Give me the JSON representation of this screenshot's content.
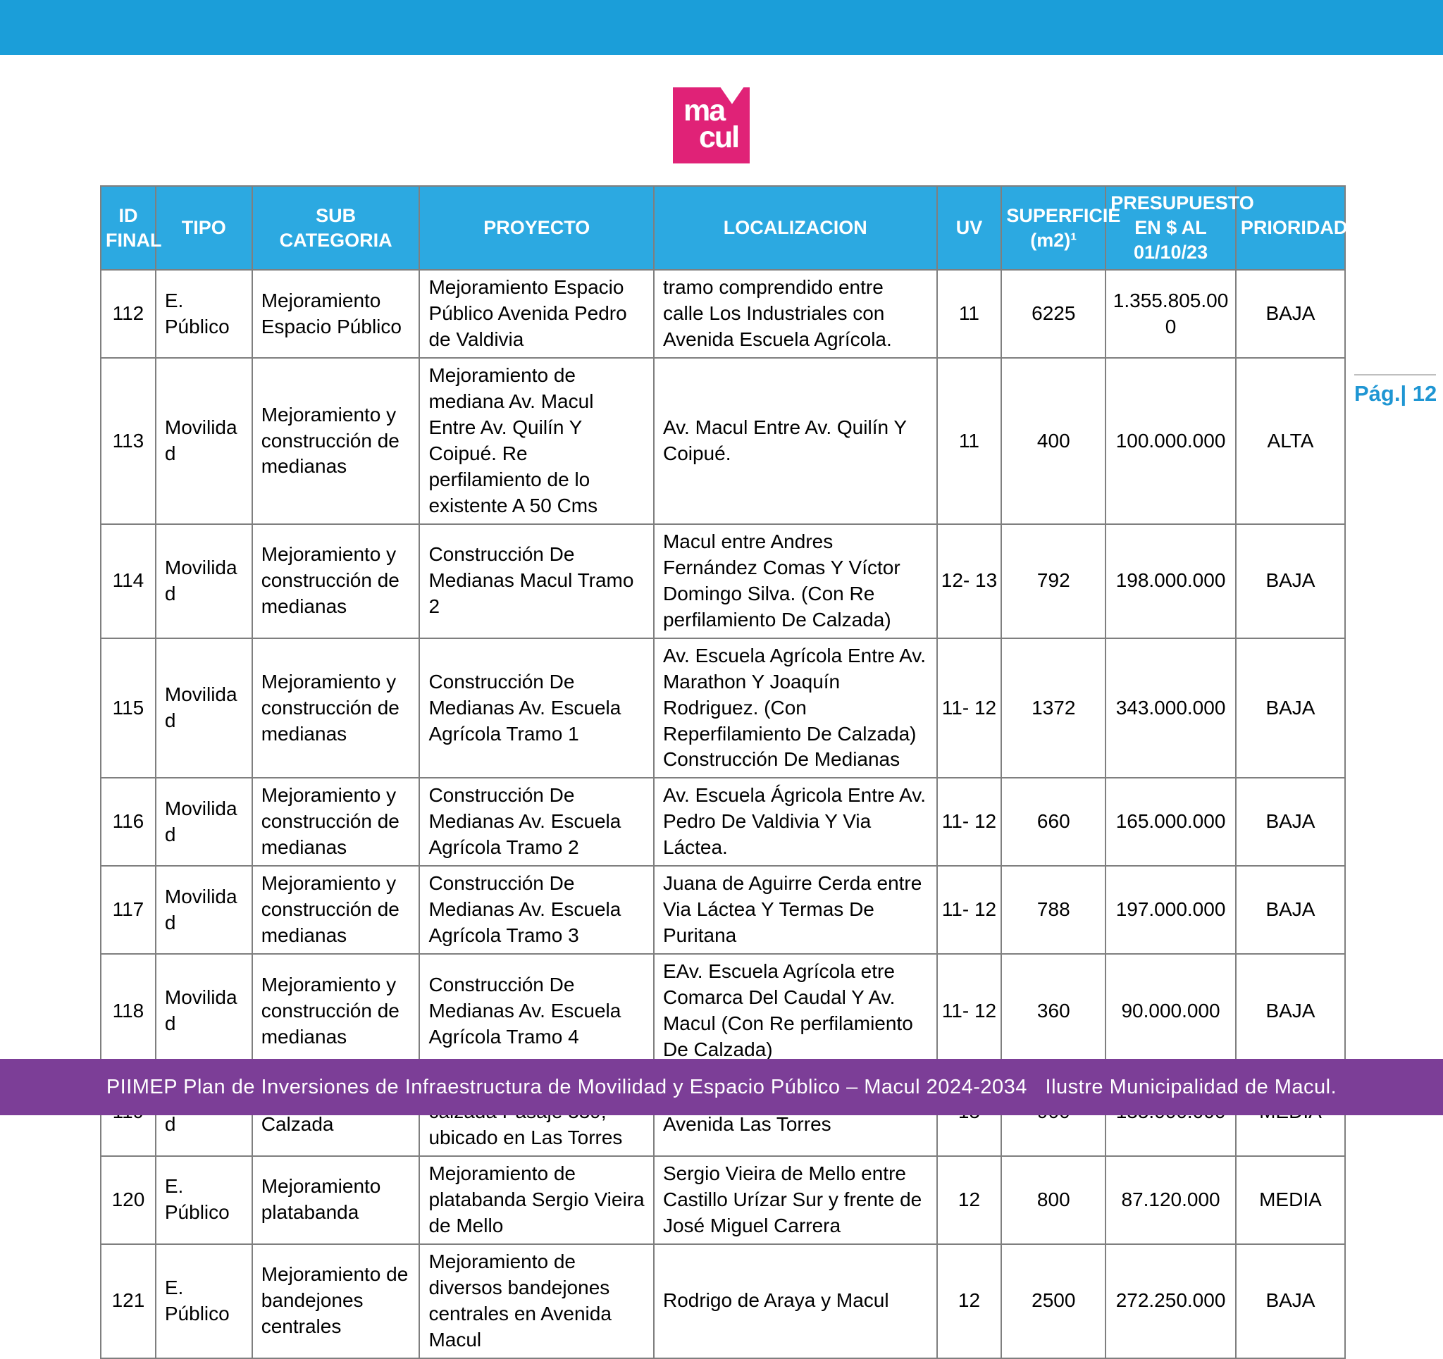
{
  "page_number": {
    "label": "Pág.| 12"
  },
  "logo": {
    "line1": "ma",
    "line2": "cul"
  },
  "colors": {
    "top_bar_cyan": "#1B9ED9",
    "table_header_blue": "#2CA9E1",
    "logo_pink": "#E02277",
    "footer_purple": "#7C3E97",
    "page_number_blue": "#1F96D3",
    "grid_gray": "#7F7F7F"
  },
  "table": {
    "columns": [
      "ID FINAL",
      "TIPO",
      "SUB CATEGORIA",
      "PROYECTO",
      "LOCALIZACION",
      "UV",
      "SUPERFICIE (m2)¹",
      "PRESUPUESTO EN $ AL 01/10/23",
      "PRIORIDAD"
    ],
    "rows": [
      {
        "id": "112",
        "tipo": "E. Público",
        "sub_categoria": "Mejoramiento Espacio Público",
        "proyecto": "Mejoramiento Espacio Público Avenida Pedro de Valdivia",
        "localizacion": "tramo comprendido entre calle Los Industriales con Avenida Escuela Agrícola.",
        "uv": "11",
        "superficie": "6225",
        "presupuesto": "1.355.805.000",
        "prioridad": "BAJA"
      },
      {
        "id": "113",
        "tipo": "Movilidad",
        "sub_categoria": "Mejoramiento y construcción de medianas",
        "proyecto": "Mejoramiento de mediana Av. Macul Entre Av. Quilín Y Coipué. Re perfilamiento de lo existente A 50 Cms",
        "localizacion": "Av. Macul Entre Av. Quilín Y Coipué.",
        "uv": "11",
        "superficie": "400",
        "presupuesto": "100.000.000",
        "prioridad": "ALTA"
      },
      {
        "id": "114",
        "tipo": "Movilidad",
        "sub_categoria": "Mejoramiento y construcción de medianas",
        "proyecto": "Construcción De Medianas Macul Tramo 2",
        "localizacion": "Macul entre Andres Fernández Comas Y Víctor Domingo Silva. (Con Re perfilamiento De Calzada)",
        "uv": "12- 13",
        "superficie": "792",
        "presupuesto": "198.000.000",
        "prioridad": "BAJA"
      },
      {
        "id": "115",
        "tipo": "Movilidad",
        "sub_categoria": "Mejoramiento y construcción de medianas",
        "proyecto": "Construcción De Medianas Av. Escuela Agrícola Tramo 1",
        "localizacion": "Av. Escuela Agrícola Entre Av. Marathon Y Joaquín Rodriguez. (Con Reperfilamiento De Calzada) Construcción De Medianas",
        "uv": "11- 12",
        "superficie": "1372",
        "presupuesto": "343.000.000",
        "prioridad": "BAJA"
      },
      {
        "id": "116",
        "tipo": "Movilidad",
        "sub_categoria": "Mejoramiento y construcción de medianas",
        "proyecto": "Construcción De Medianas Av. Escuela Agrícola  Tramo 2",
        "localizacion": "Av. Escuela Ágricola Entre Av. Pedro De Valdivia Y Via Láctea.",
        "uv": "11- 12",
        "superficie": "660",
        "presupuesto": "165.000.000",
        "prioridad": "BAJA"
      },
      {
        "id": "117",
        "tipo": "Movilidad",
        "sub_categoria": "Mejoramiento y construcción de medianas",
        "proyecto": "Construcción De Medianas Av. Escuela Agrícola Tramo 3",
        "localizacion": "Juana de Aguirre Cerda entre Via Láctea Y Termas De Puritana",
        "uv": "11- 12",
        "superficie": "788",
        "presupuesto": "197.000.000",
        "prioridad": "BAJA"
      },
      {
        "id": "118",
        "tipo": "Movilidad",
        "sub_categoria": "Mejoramiento y construcción de medianas",
        "proyecto": "Construcción De Medianas Av. Escuela Agrícola Tramo 4",
        "localizacion": "EAv. Escuela Agrícola etre Comarca Del Caudal Y Av. Macul (Con Re perfilamiento De Calzada)",
        "uv": "11- 12",
        "superficie": "360",
        "presupuesto": "90.000.000",
        "prioridad": "BAJA"
      },
      {
        "id": "119",
        "tipo": "Movilidad",
        "sub_categoria": "Mejoramiento Calzada",
        "proyecto": "Repavimentación de calzada Pasaje 339, ubicado en Las Torres",
        "localizacion": "Pasaje 339 con salida a Avenida Las Torres",
        "uv": "15",
        "superficie": "900",
        "presupuesto": "135.000.000",
        "prioridad": "MEDIA"
      },
      {
        "id": "120",
        "tipo": "E. Público",
        "sub_categoria": "Mejoramiento platabanda",
        "proyecto": "Mejoramiento de platabanda Sergio Vieira de Mello",
        "localizacion": "Sergio Vieira de Mello entre Castillo Urízar Sur y frente de José Miguel Carrera",
        "uv": "12",
        "superficie": "800",
        "presupuesto": "87.120.000",
        "prioridad": "MEDIA"
      },
      {
        "id": "121",
        "tipo": "E. Público",
        "sub_categoria": "Mejoramiento de bandejones centrales",
        "proyecto": "Mejoramiento de diversos bandejones centrales en Avenida Macul",
        "localizacion": "Rodrigo de Araya y Macul",
        "uv": "12",
        "superficie": "2500",
        "presupuesto": "272.250.000",
        "prioridad": "BAJA"
      }
    ]
  },
  "footer": {
    "text": "PIIMEP Plan de Inversiones de Infraestructura de Movilidad y Espacio Público – Macul 2024-2034   Ilustre Municipalidad de Macul."
  }
}
